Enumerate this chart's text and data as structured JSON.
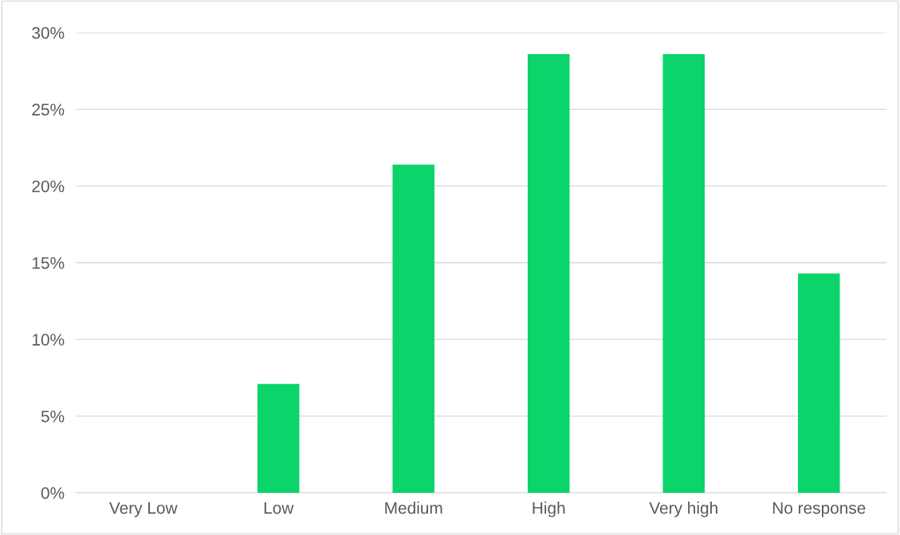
{
  "chart_data": {
    "type": "bar",
    "categories": [
      "Very Low",
      "Low",
      "Medium",
      "High",
      "Very high",
      "No response"
    ],
    "values": [
      0,
      7.1,
      21.4,
      28.6,
      28.6,
      14.3
    ],
    "color": "#0bd46a",
    "ylim": [
      0,
      30
    ],
    "yticks": [
      {
        "value": 0,
        "label": "0%"
      },
      {
        "value": 5,
        "label": "5%"
      },
      {
        "value": 10,
        "label": "10%"
      },
      {
        "value": 15,
        "label": "15%"
      },
      {
        "value": 20,
        "label": "20%"
      },
      {
        "value": 25,
        "label": "25%"
      },
      {
        "value": 30,
        "label": "30%"
      }
    ],
    "grid": "y",
    "legend": false
  }
}
